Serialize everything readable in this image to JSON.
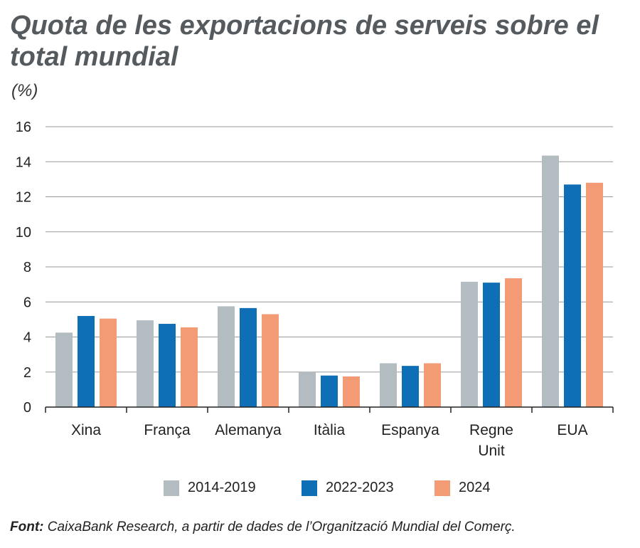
{
  "header": {
    "title": "Quota de les exportacions de serveis sobre el total mundial",
    "unit": "(%)"
  },
  "footer": {
    "source_label": "Font:",
    "source_text": "CaixaBank Research, a partir de dades de l’Organització Mundial del Comerç."
  },
  "chart_data": {
    "type": "bar",
    "title": "Quota de les exportacions de serveis sobre el total mundial",
    "ylabel": "(%)",
    "xlabel": "",
    "ylim": [
      0,
      16
    ],
    "yticks": [
      0,
      2,
      4,
      6,
      8,
      10,
      12,
      14,
      16
    ],
    "grid": true,
    "legend_position": "bottom",
    "categories": [
      [
        "Xina"
      ],
      [
        "França"
      ],
      [
        "Alemanya"
      ],
      [
        "Itàlia"
      ],
      [
        "Espanya"
      ],
      [
        "Regne",
        "Unit"
      ],
      [
        "EUA"
      ]
    ],
    "series": [
      {
        "name": "2014-2019",
        "color": "#b3bdc1",
        "values": [
          4.25,
          4.95,
          5.75,
          2.0,
          2.5,
          7.15,
          14.35
        ]
      },
      {
        "name": "2022-2023",
        "color": "#0e6eb6",
        "values": [
          5.2,
          4.75,
          5.65,
          1.8,
          2.35,
          7.1,
          12.7
        ]
      },
      {
        "name": "2024",
        "color": "#f39b74",
        "values": [
          5.05,
          4.55,
          5.3,
          1.75,
          2.5,
          7.35,
          12.8
        ]
      }
    ]
  }
}
